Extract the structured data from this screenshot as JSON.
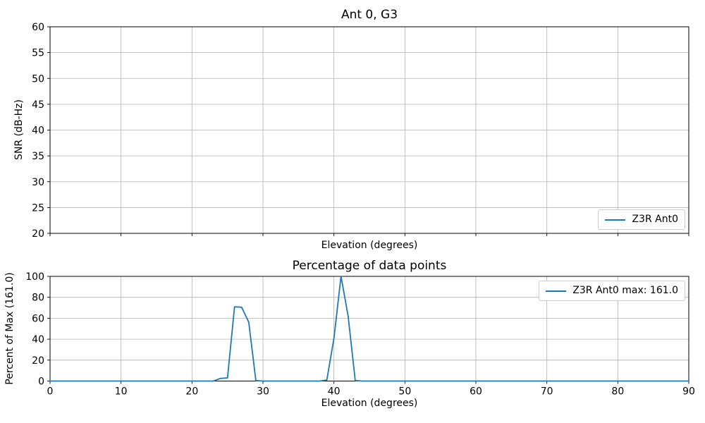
{
  "figure": {
    "background": "#ffffff",
    "line_color": "#1f77b4",
    "grid_color": "#b0b0b0",
    "axis_color": "#000000",
    "text_color": "#000000",
    "legend_border_color": "#cccccc"
  },
  "chart_data": [
    {
      "type": "line",
      "title": "Ant 0, G3",
      "xlabel": "Elevation (degrees)",
      "ylabel": "SNR (dB-Hz)",
      "xlim": [
        0,
        90
      ],
      "ylim": [
        20,
        60
      ],
      "xticks": [
        0,
        10,
        20,
        30,
        40,
        50,
        60,
        70,
        80,
        90
      ],
      "yticks": [
        20,
        25,
        30,
        35,
        40,
        45,
        50,
        55,
        60
      ],
      "xtick_labels": false,
      "grid": true,
      "legend": {
        "position": "lower right",
        "entries": [
          {
            "label": "Z3R Ant0",
            "color": "#1f77b4"
          }
        ]
      },
      "series": [
        {
          "name": "Z3R Ant0",
          "x": [],
          "y": []
        }
      ]
    },
    {
      "type": "line",
      "title": "Percentage of data points",
      "xlabel": "Elevation (degrees)",
      "ylabel": "Percent of Max (161.0)",
      "xlim": [
        0,
        90
      ],
      "ylim": [
        0,
        100
      ],
      "xticks": [
        0,
        10,
        20,
        30,
        40,
        50,
        60,
        70,
        80,
        90
      ],
      "yticks": [
        0,
        20,
        40,
        60,
        80,
        100
      ],
      "xtick_labels": true,
      "grid": true,
      "legend": {
        "position": "upper right",
        "entries": [
          {
            "label": "Z3R Ant0 max: 161.0",
            "color": "#1f77b4"
          }
        ]
      },
      "series": [
        {
          "name": "Z3R Ant0 max: 161.0",
          "max": 161.0,
          "x": [
            0,
            1,
            2,
            3,
            4,
            5,
            6,
            7,
            8,
            9,
            10,
            11,
            12,
            13,
            14,
            15,
            16,
            17,
            18,
            19,
            20,
            21,
            22,
            23,
            24,
            25,
            26,
            27,
            28,
            29,
            30,
            31,
            32,
            33,
            34,
            35,
            36,
            37,
            38,
            39,
            40,
            41,
            42,
            43,
            44,
            45,
            46,
            47,
            48,
            49,
            50,
            51,
            52,
            53,
            54,
            55,
            56,
            57,
            58,
            59,
            60,
            61,
            62,
            63,
            64,
            65,
            66,
            67,
            68,
            69,
            70,
            71,
            72,
            73,
            74,
            75,
            76,
            77,
            78,
            79,
            80,
            81,
            82,
            83,
            84,
            85,
            86,
            87,
            88,
            89,
            90
          ],
          "y": [
            0,
            0,
            0,
            0,
            0,
            0,
            0,
            0,
            0,
            0,
            0,
            0,
            0,
            0,
            0,
            0,
            0,
            0,
            0,
            0,
            0,
            0,
            0,
            0,
            2.5,
            3,
            71,
            70.5,
            56,
            0.5,
            0,
            0,
            0,
            0,
            0,
            0,
            0,
            0,
            0,
            1,
            41,
            100,
            62,
            0.5,
            0,
            0,
            0,
            0,
            0,
            0,
            0,
            0,
            0,
            0,
            0,
            0,
            0,
            0,
            0,
            0,
            0,
            0,
            0,
            0,
            0,
            0,
            0,
            0,
            0,
            0,
            0,
            0,
            0,
            0,
            0,
            0,
            0,
            0,
            0,
            0,
            0,
            0,
            0,
            0,
            0,
            0,
            0,
            0,
            0,
            0,
            0
          ]
        }
      ]
    }
  ]
}
